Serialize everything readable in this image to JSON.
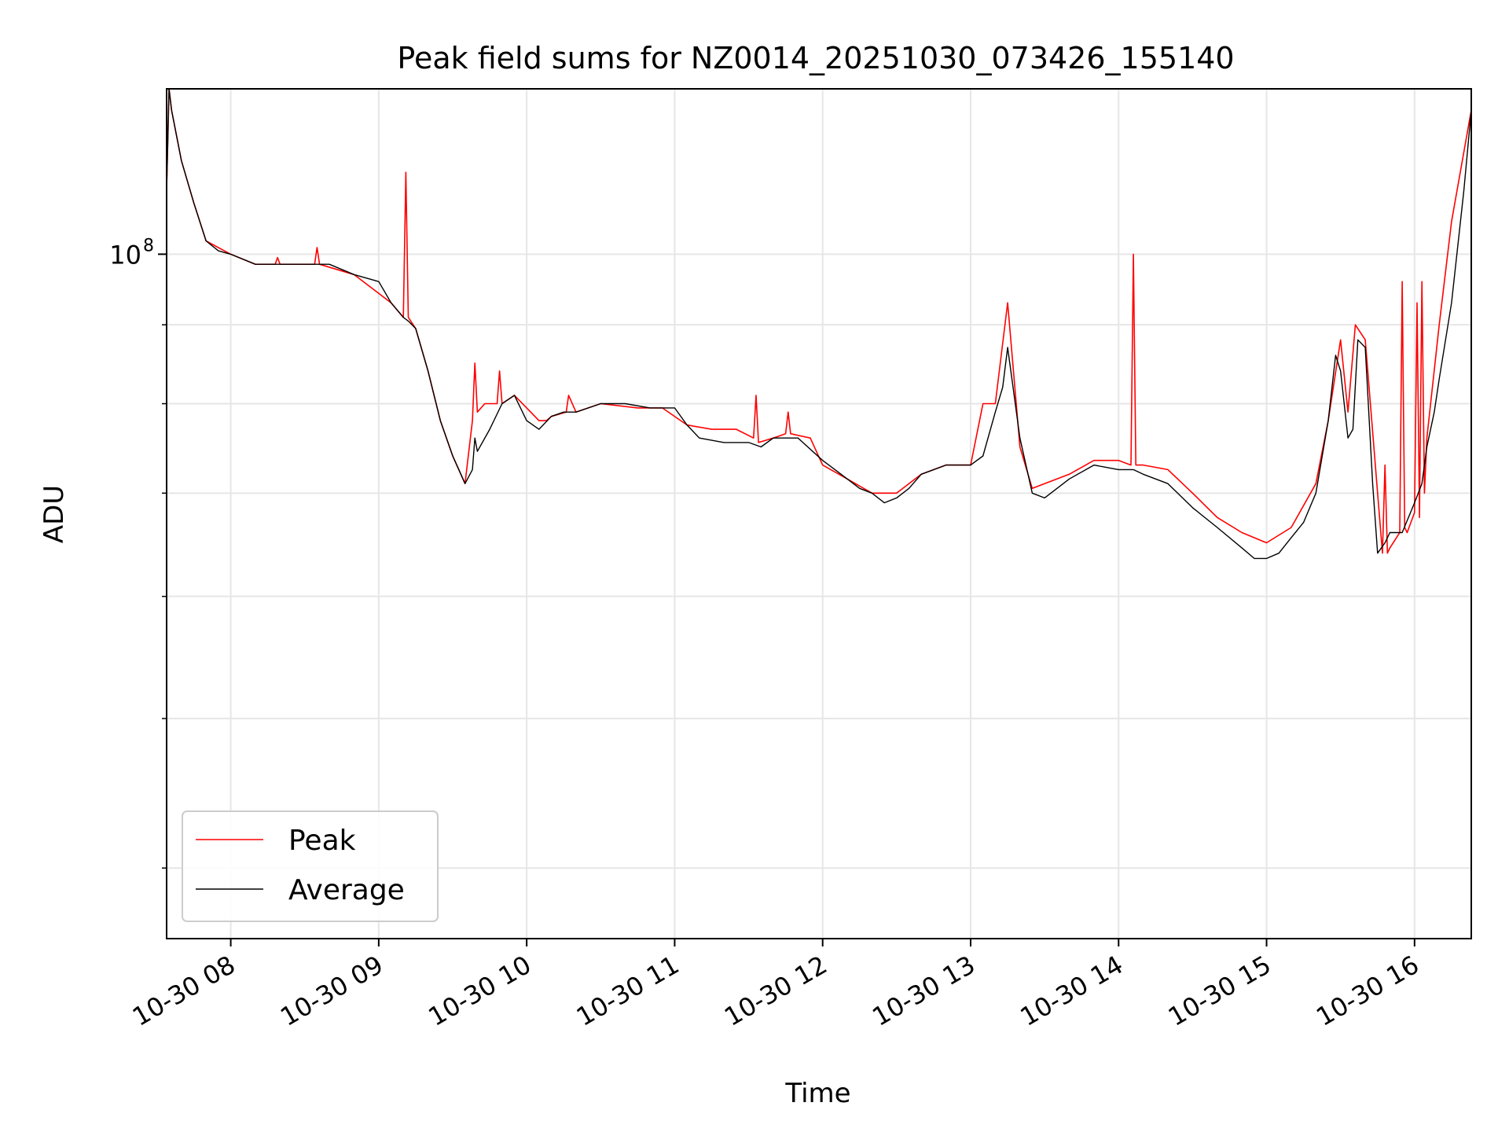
{
  "chart_data": {
    "type": "line",
    "title": "Peak field sums for NZ0014_20251030_073426_155140",
    "xlabel": "Time",
    "ylabel": "ADU",
    "x_range": [
      "2025-10-30 07:34",
      "2025-10-30 16:23"
    ],
    "y_scale": "log",
    "y_range": [
      36000000,
      128000000
    ],
    "x_ticks": [
      "10-30 08",
      "10-30 09",
      "10-30 10",
      "10-30 11",
      "10-30 12",
      "10-30 13",
      "10-30 14",
      "10-30 15",
      "10-30 16"
    ],
    "y_ticks": [
      {
        "value": 100000000,
        "label": "10",
        "exponent": "8"
      }
    ],
    "y_minor_ticks": [
      40000000,
      50000000,
      60000000,
      70000000,
      80000000,
      90000000
    ],
    "grid": true,
    "legend_position": "lower-left",
    "series": [
      {
        "name": "Peak",
        "color": "#ff0000",
        "x": [
          "2025-10-30 07:34",
          "2025-10-30 07:35",
          "2025-10-30 07:36",
          "2025-10-30 07:40",
          "2025-10-30 07:45",
          "2025-10-30 07:50",
          "2025-10-30 08:00",
          "2025-10-30 08:10",
          "2025-10-30 08:18",
          "2025-10-30 08:19",
          "2025-10-30 08:20",
          "2025-10-30 08:30",
          "2025-10-30 08:34",
          "2025-10-30 08:35",
          "2025-10-30 08:36",
          "2025-10-30 08:50",
          "2025-10-30 09:05",
          "2025-10-30 09:10",
          "2025-10-30 09:11",
          "2025-10-30 09:12",
          "2025-10-30 09:15",
          "2025-10-30 09:20",
          "2025-10-30 09:25",
          "2025-10-30 09:30",
          "2025-10-30 09:35",
          "2025-10-30 09:38",
          "2025-10-30 09:39",
          "2025-10-30 09:40",
          "2025-10-30 09:43",
          "2025-10-30 09:46",
          "2025-10-30 09:48",
          "2025-10-30 09:49",
          "2025-10-30 09:50",
          "2025-10-30 09:55",
          "2025-10-30 10:05",
          "2025-10-30 10:08",
          "2025-10-30 10:10",
          "2025-10-30 10:16",
          "2025-10-30 10:17",
          "2025-10-30 10:20",
          "2025-10-30 10:30",
          "2025-10-30 10:45",
          "2025-10-30 10:55",
          "2025-10-30 11:05",
          "2025-10-30 11:15",
          "2025-10-30 11:25",
          "2025-10-30 11:32",
          "2025-10-30 11:33",
          "2025-10-30 11:34",
          "2025-10-30 11:40",
          "2025-10-30 11:45",
          "2025-10-30 11:46",
          "2025-10-30 11:47",
          "2025-10-30 11:55",
          "2025-10-30 12:00",
          "2025-10-30 12:10",
          "2025-10-30 12:20",
          "2025-10-30 12:30",
          "2025-10-30 12:40",
          "2025-10-30 12:50",
          "2025-10-30 13:00",
          "2025-10-30 13:05",
          "2025-10-30 13:10",
          "2025-10-30 13:15",
          "2025-10-30 13:20",
          "2025-10-30 13:25",
          "2025-10-30 13:30",
          "2025-10-30 13:40",
          "2025-10-30 13:50",
          "2025-10-30 14:00",
          "2025-10-30 14:05",
          "2025-10-30 14:06",
          "2025-10-30 14:07",
          "2025-10-30 14:10",
          "2025-10-30 14:20",
          "2025-10-30 14:30",
          "2025-10-30 14:40",
          "2025-10-30 14:50",
          "2025-10-30 15:00",
          "2025-10-30 15:10",
          "2025-10-30 15:20",
          "2025-10-30 15:25",
          "2025-10-30 15:30",
          "2025-10-30 15:33",
          "2025-10-30 15:36",
          "2025-10-30 15:40",
          "2025-10-30 15:45",
          "2025-10-30 15:47",
          "2025-10-30 15:48",
          "2025-10-30 15:49",
          "2025-10-30 15:50",
          "2025-10-30 15:54",
          "2025-10-30 15:55",
          "2025-10-30 15:56",
          "2025-10-30 15:57",
          "2025-10-30 16:00",
          "2025-10-30 16:01",
          "2025-10-30 16:02",
          "2025-10-30 16:03",
          "2025-10-30 16:04",
          "2025-10-30 16:05",
          "2025-10-30 16:10",
          "2025-10-30 16:15",
          "2025-10-30 16:23"
        ],
        "y": [
          110000000,
          128000000,
          124000000,
          115000000,
          108000000,
          102000000,
          100000000,
          98500000,
          98500000,
          99500000,
          98500000,
          98500000,
          98500000,
          101000000,
          98500000,
          97000000,
          93000000,
          91000000,
          113000000,
          91000000,
          89500000,
          84000000,
          78000000,
          74000000,
          71000000,
          78000000,
          85000000,
          79000000,
          80000000,
          80000000,
          80000000,
          84000000,
          80000000,
          81000000,
          78000000,
          78000000,
          78500000,
          79000000,
          81000000,
          79000000,
          80000000,
          79500000,
          79500000,
          77500000,
          77000000,
          77000000,
          76000000,
          81000000,
          75500000,
          76000000,
          76500000,
          79000000,
          76500000,
          76000000,
          73000000,
          71500000,
          70000000,
          70000000,
          72000000,
          73000000,
          73000000,
          80000000,
          80000000,
          93000000,
          75000000,
          70500000,
          71000000,
          72000000,
          73500000,
          73500000,
          73000000,
          100000000,
          73000000,
          73000000,
          72500000,
          70000000,
          67500000,
          66000000,
          65000000,
          66500000,
          71000000,
          78000000,
          88000000,
          79000000,
          90000000,
          88000000,
          70000000,
          64000000,
          73000000,
          64000000,
          64500000,
          66000000,
          96000000,
          66500000,
          66000000,
          68000000,
          93000000,
          67500000,
          96000000,
          70000000,
          76000000,
          90000000,
          105000000,
          124000000
        ]
      },
      {
        "name": "Average",
        "color": "#000000",
        "x": [
          "2025-10-30 07:34",
          "2025-10-30 07:35",
          "2025-10-30 07:36",
          "2025-10-30 07:40",
          "2025-10-30 07:45",
          "2025-10-30 07:50",
          "2025-10-30 07:55",
          "2025-10-30 08:00",
          "2025-10-30 08:10",
          "2025-10-30 08:20",
          "2025-10-30 08:30",
          "2025-10-30 08:40",
          "2025-10-30 08:50",
          "2025-10-30 09:00",
          "2025-10-30 09:05",
          "2025-10-30 09:10",
          "2025-10-30 09:12",
          "2025-10-30 09:15",
          "2025-10-30 09:20",
          "2025-10-30 09:25",
          "2025-10-30 09:30",
          "2025-10-30 09:35",
          "2025-10-30 09:38",
          "2025-10-30 09:39",
          "2025-10-30 09:40",
          "2025-10-30 09:45",
          "2025-10-30 09:50",
          "2025-10-30 09:55",
          "2025-10-30 10:00",
          "2025-10-30 10:05",
          "2025-10-30 10:10",
          "2025-10-30 10:15",
          "2025-10-30 10:20",
          "2025-10-30 10:30",
          "2025-10-30 10:40",
          "2025-10-30 10:50",
          "2025-10-30 11:00",
          "2025-10-30 11:05",
          "2025-10-30 11:10",
          "2025-10-30 11:20",
          "2025-10-30 11:30",
          "2025-10-30 11:35",
          "2025-10-30 11:40",
          "2025-10-30 11:50",
          "2025-10-30 12:00",
          "2025-10-30 12:05",
          "2025-10-30 12:10",
          "2025-10-30 12:15",
          "2025-10-30 12:20",
          "2025-10-30 12:25",
          "2025-10-30 12:30",
          "2025-10-30 12:35",
          "2025-10-30 12:40",
          "2025-10-30 12:50",
          "2025-10-30 13:00",
          "2025-10-30 13:05",
          "2025-10-30 13:10",
          "2025-10-30 13:13",
          "2025-10-30 13:15",
          "2025-10-30 13:20",
          "2025-10-30 13:25",
          "2025-10-30 13:30",
          "2025-10-30 13:40",
          "2025-10-30 13:50",
          "2025-10-30 14:00",
          "2025-10-30 14:06",
          "2025-10-30 14:10",
          "2025-10-30 14:20",
          "2025-10-30 14:30",
          "2025-10-30 14:40",
          "2025-10-30 14:50",
          "2025-10-30 14:55",
          "2025-10-30 15:00",
          "2025-10-30 15:05",
          "2025-10-30 15:10",
          "2025-10-30 15:15",
          "2025-10-30 15:20",
          "2025-10-30 15:25",
          "2025-10-30 15:28",
          "2025-10-30 15:30",
          "2025-10-30 15:33",
          "2025-10-30 15:35",
          "2025-10-30 15:37",
          "2025-10-30 15:40",
          "2025-10-30 15:43",
          "2025-10-30 15:45",
          "2025-10-30 15:48",
          "2025-10-30 15:50",
          "2025-10-30 15:55",
          "2025-10-30 16:00",
          "2025-10-30 16:03",
          "2025-10-30 16:05",
          "2025-10-30 16:08",
          "2025-10-30 16:10",
          "2025-10-30 16:15",
          "2025-10-30 16:20",
          "2025-10-30 16:23"
        ],
        "y": [
          110000000,
          128000000,
          124000000,
          115000000,
          108000000,
          102000000,
          100500000,
          100000000,
          98500000,
          98500000,
          98500000,
          98500000,
          97000000,
          96000000,
          93000000,
          91000000,
          90500000,
          89500000,
          84000000,
          78000000,
          74000000,
          71000000,
          72500000,
          76000000,
          74500000,
          77000000,
          80000000,
          81000000,
          78000000,
          77000000,
          78500000,
          79000000,
          79000000,
          80000000,
          80000000,
          79500000,
          79500000,
          77500000,
          76000000,
          75500000,
          75500000,
          75000000,
          76000000,
          76000000,
          73500000,
          72500000,
          71500000,
          70500000,
          70000000,
          69000000,
          69500000,
          70500000,
          72000000,
          73000000,
          73000000,
          74000000,
          79000000,
          82000000,
          87000000,
          76000000,
          70000000,
          69500000,
          71500000,
          73000000,
          72500000,
          72500000,
          72000000,
          71000000,
          68500000,
          66500000,
          64500000,
          63500000,
          63500000,
          64000000,
          65500000,
          67000000,
          70000000,
          78000000,
          86000000,
          84000000,
          76000000,
          77000000,
          88000000,
          87000000,
          71000000,
          64000000,
          65000000,
          66000000,
          66000000,
          69000000,
          71000000,
          75000000,
          79000000,
          83000000,
          93000000,
          110000000,
          124000000
        ]
      }
    ]
  }
}
